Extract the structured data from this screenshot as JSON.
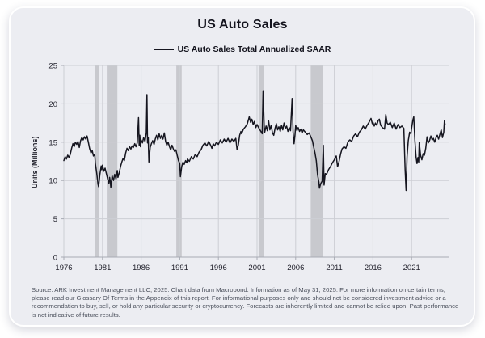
{
  "footer": {
    "source_text": "Source: ARK Investment Management LLC, 2025. Chart data from Macrobond. Information as of May 31, 2025. For more information on certain terms, please read our Glossary Of Terms in the Appendix of this report. For informational purposes only and should not be considered investment advice or a recommendation to buy, sell, or hold any particular security or cryptocurrency. Forecasts are inherently limited and cannot be relied upon. Past performance is not indicative of future results."
  },
  "colors": {
    "card_bg": "#ecedf2",
    "card_border": "#ffffff",
    "line": "#15151f",
    "recession_band": "#c8c9ce",
    "gridline": "#cdced4",
    "axis": "#a8abb4",
    "tick_label": "#23232e",
    "title": "#14141e",
    "source": "#4b505c"
  },
  "chart_data": {
    "type": "line",
    "title": "US Auto Sales",
    "legend_label": "US Auto Sales Total Annualized SAAR",
    "legend_position": "top-center",
    "xlabel": "",
    "ylabel": "Units (Millions)",
    "x_domain": [
      1976,
      2025.9
    ],
    "ylim": [
      0,
      25
    ],
    "y_ticks": [
      0,
      5,
      10,
      15,
      20,
      25
    ],
    "x_ticks": [
      1976,
      1981,
      1986,
      1991,
      1996,
      2001,
      2006,
      2011,
      2016,
      2021
    ],
    "grid": true,
    "recession_bands": [
      [
        1980.05,
        1980.58
      ],
      [
        1981.55,
        1982.92
      ],
      [
        1990.55,
        1991.25
      ],
      [
        2001.2,
        2001.92
      ],
      [
        2007.95,
        2009.5
      ]
    ],
    "series": [
      {
        "name": "US Auto Sales Total Annualized SAAR",
        "color": "#15151f",
        "points": [
          [
            1976.0,
            12.6
          ],
          [
            1976.17,
            13.1
          ],
          [
            1976.33,
            12.8
          ],
          [
            1976.5,
            13.3
          ],
          [
            1976.67,
            13.0
          ],
          [
            1976.83,
            13.4
          ],
          [
            1977.0,
            14.2
          ],
          [
            1977.17,
            14.8
          ],
          [
            1977.33,
            14.4
          ],
          [
            1977.5,
            15.0
          ],
          [
            1977.67,
            14.7
          ],
          [
            1977.83,
            15.1
          ],
          [
            1978.0,
            14.3
          ],
          [
            1978.17,
            15.2
          ],
          [
            1978.33,
            15.6
          ],
          [
            1978.5,
            15.3
          ],
          [
            1978.67,
            15.7
          ],
          [
            1978.83,
            15.4
          ],
          [
            1979.0,
            15.8
          ],
          [
            1979.17,
            15.0
          ],
          [
            1979.33,
            14.2
          ],
          [
            1979.5,
            13.6
          ],
          [
            1979.67,
            13.9
          ],
          [
            1979.83,
            13.2
          ],
          [
            1980.0,
            13.4
          ],
          [
            1980.08,
            12.2
          ],
          [
            1980.25,
            11.0
          ],
          [
            1980.42,
            9.5
          ],
          [
            1980.5,
            9.2
          ],
          [
            1980.67,
            10.8
          ],
          [
            1980.83,
            11.9
          ],
          [
            1980.92,
            11.4
          ],
          [
            1981.0,
            12.0
          ],
          [
            1981.17,
            11.2
          ],
          [
            1981.33,
            11.6
          ],
          [
            1981.5,
            10.9
          ],
          [
            1981.67,
            10.2
          ],
          [
            1981.83,
            9.6
          ],
          [
            1981.92,
            10.4
          ],
          [
            1982.0,
            9.9
          ],
          [
            1982.08,
            9.1
          ],
          [
            1982.25,
            10.6
          ],
          [
            1982.42,
            10.0
          ],
          [
            1982.58,
            10.8
          ],
          [
            1982.75,
            10.2
          ],
          [
            1982.92,
            11.3
          ],
          [
            1983.0,
            10.4
          ],
          [
            1983.17,
            11.0
          ],
          [
            1983.33,
            11.8
          ],
          [
            1983.5,
            12.4
          ],
          [
            1983.67,
            12.9
          ],
          [
            1983.83,
            12.6
          ],
          [
            1984.0,
            13.6
          ],
          [
            1984.17,
            14.2
          ],
          [
            1984.33,
            13.9
          ],
          [
            1984.5,
            14.4
          ],
          [
            1984.67,
            14.1
          ],
          [
            1984.83,
            14.5
          ],
          [
            1985.0,
            14.3
          ],
          [
            1985.17,
            14.8
          ],
          [
            1985.33,
            14.4
          ],
          [
            1985.5,
            14.9
          ],
          [
            1985.67,
            18.2
          ],
          [
            1985.75,
            14.6
          ],
          [
            1985.83,
            15.9
          ],
          [
            1985.92,
            14.4
          ],
          [
            1986.0,
            15.3
          ],
          [
            1986.17,
            14.9
          ],
          [
            1986.33,
            15.6
          ],
          [
            1986.5,
            15.1
          ],
          [
            1986.67,
            16.2
          ],
          [
            1986.75,
            21.2
          ],
          [
            1986.83,
            14.9
          ],
          [
            1986.92,
            15.6
          ],
          [
            1987.0,
            12.4
          ],
          [
            1987.17,
            14.3
          ],
          [
            1987.33,
            14.8
          ],
          [
            1987.5,
            15.2
          ],
          [
            1987.67,
            14.7
          ],
          [
            1987.83,
            15.4
          ],
          [
            1988.0,
            15.9
          ],
          [
            1988.17,
            15.3
          ],
          [
            1988.33,
            16.1
          ],
          [
            1988.5,
            15.5
          ],
          [
            1988.67,
            15.9
          ],
          [
            1988.83,
            15.4
          ],
          [
            1989.0,
            16.2
          ],
          [
            1989.17,
            15.1
          ],
          [
            1989.33,
            14.6
          ],
          [
            1989.5,
            15.0
          ],
          [
            1989.67,
            14.4
          ],
          [
            1989.83,
            14.0
          ],
          [
            1990.0,
            14.6
          ],
          [
            1990.17,
            14.1
          ],
          [
            1990.33,
            13.8
          ],
          [
            1990.5,
            14.0
          ],
          [
            1990.67,
            13.3
          ],
          [
            1990.83,
            12.6
          ],
          [
            1991.0,
            12.2
          ],
          [
            1991.08,
            10.5
          ],
          [
            1991.25,
            11.8
          ],
          [
            1991.42,
            12.4
          ],
          [
            1991.58,
            12.1
          ],
          [
            1991.75,
            12.6
          ],
          [
            1991.92,
            12.3
          ],
          [
            1992.0,
            12.8
          ],
          [
            1992.25,
            12.5
          ],
          [
            1992.5,
            13.1
          ],
          [
            1992.75,
            12.8
          ],
          [
            1993.0,
            13.4
          ],
          [
            1993.25,
            13.1
          ],
          [
            1993.5,
            13.7
          ],
          [
            1993.75,
            14.0
          ],
          [
            1994.0,
            14.6
          ],
          [
            1994.25,
            14.9
          ],
          [
            1994.5,
            14.5
          ],
          [
            1994.75,
            15.1
          ],
          [
            1995.0,
            14.6
          ],
          [
            1995.17,
            14.2
          ],
          [
            1995.33,
            14.8
          ],
          [
            1995.5,
            14.5
          ],
          [
            1995.75,
            15.0
          ],
          [
            1996.0,
            14.7
          ],
          [
            1996.25,
            15.3
          ],
          [
            1996.5,
            14.9
          ],
          [
            1996.75,
            15.4
          ],
          [
            1997.0,
            15.0
          ],
          [
            1997.25,
            15.5
          ],
          [
            1997.5,
            14.9
          ],
          [
            1997.75,
            15.4
          ],
          [
            1998.0,
            15.1
          ],
          [
            1998.25,
            15.5
          ],
          [
            1998.42,
            14.0
          ],
          [
            1998.58,
            14.6
          ],
          [
            1998.75,
            15.9
          ],
          [
            1998.92,
            16.4
          ],
          [
            1999.0,
            16.1
          ],
          [
            1999.25,
            16.7
          ],
          [
            1999.5,
            17.0
          ],
          [
            1999.75,
            17.4
          ],
          [
            2000.0,
            18.3
          ],
          [
            2000.17,
            17.6
          ],
          [
            2000.33,
            18.0
          ],
          [
            2000.5,
            17.3
          ],
          [
            2000.67,
            17.7
          ],
          [
            2000.83,
            16.9
          ],
          [
            2001.0,
            17.3
          ],
          [
            2001.25,
            16.8
          ],
          [
            2001.5,
            16.4
          ],
          [
            2001.67,
            16.1
          ],
          [
            2001.79,
            21.7
          ],
          [
            2001.92,
            17.2
          ],
          [
            2002.0,
            16.3
          ],
          [
            2002.17,
            17.1
          ],
          [
            2002.33,
            16.5
          ],
          [
            2002.5,
            17.8
          ],
          [
            2002.67,
            16.6
          ],
          [
            2002.83,
            17.2
          ],
          [
            2003.0,
            16.2
          ],
          [
            2003.17,
            15.9
          ],
          [
            2003.33,
            16.8
          ],
          [
            2003.5,
            17.4
          ],
          [
            2003.67,
            16.6
          ],
          [
            2003.83,
            17.0
          ],
          [
            2004.0,
            16.4
          ],
          [
            2004.17,
            17.2
          ],
          [
            2004.33,
            16.6
          ],
          [
            2004.5,
            17.5
          ],
          [
            2004.67,
            16.8
          ],
          [
            2004.83,
            17.1
          ],
          [
            2005.0,
            16.4
          ],
          [
            2005.17,
            16.9
          ],
          [
            2005.33,
            16.5
          ],
          [
            2005.54,
            20.7
          ],
          [
            2005.67,
            16.3
          ],
          [
            2005.79,
            14.8
          ],
          [
            2005.92,
            16.0
          ],
          [
            2006.0,
            17.2
          ],
          [
            2006.17,
            16.5
          ],
          [
            2006.33,
            16.9
          ],
          [
            2006.5,
            16.4
          ],
          [
            2006.67,
            16.7
          ],
          [
            2006.83,
            16.2
          ],
          [
            2007.0,
            16.6
          ],
          [
            2007.25,
            16.3
          ],
          [
            2007.5,
            16.0
          ],
          [
            2007.75,
            16.2
          ],
          [
            2008.0,
            15.6
          ],
          [
            2008.17,
            15.2
          ],
          [
            2008.33,
            14.4
          ],
          [
            2008.5,
            13.6
          ],
          [
            2008.67,
            12.6
          ],
          [
            2008.83,
            10.8
          ],
          [
            2009.0,
            9.8
          ],
          [
            2009.08,
            9.0
          ],
          [
            2009.25,
            9.6
          ],
          [
            2009.42,
            9.9
          ],
          [
            2009.58,
            14.6
          ],
          [
            2009.67,
            9.4
          ],
          [
            2009.83,
            10.9
          ],
          [
            2010.0,
            10.8
          ],
          [
            2010.25,
            11.4
          ],
          [
            2010.5,
            11.8
          ],
          [
            2010.75,
            12.3
          ],
          [
            2011.0,
            12.7
          ],
          [
            2011.25,
            13.2
          ],
          [
            2011.42,
            11.8
          ],
          [
            2011.58,
            12.3
          ],
          [
            2011.83,
            13.5
          ],
          [
            2012.0,
            14.1
          ],
          [
            2012.25,
            14.4
          ],
          [
            2012.5,
            14.2
          ],
          [
            2012.75,
            15.0
          ],
          [
            2013.0,
            15.3
          ],
          [
            2013.25,
            15.1
          ],
          [
            2013.5,
            15.8
          ],
          [
            2013.75,
            16.1
          ],
          [
            2014.0,
            15.7
          ],
          [
            2014.25,
            16.3
          ],
          [
            2014.5,
            16.6
          ],
          [
            2014.75,
            17.1
          ],
          [
            2015.0,
            16.7
          ],
          [
            2015.25,
            17.2
          ],
          [
            2015.5,
            17.6
          ],
          [
            2015.75,
            18.1
          ],
          [
            2015.92,
            17.4
          ],
          [
            2016.0,
            17.6
          ],
          [
            2016.17,
            17.1
          ],
          [
            2016.33,
            17.5
          ],
          [
            2016.5,
            17.2
          ],
          [
            2016.67,
            17.8
          ],
          [
            2016.83,
            18.0
          ],
          [
            2017.0,
            17.2
          ],
          [
            2017.25,
            16.9
          ],
          [
            2017.5,
            16.7
          ],
          [
            2017.67,
            18.6
          ],
          [
            2017.83,
            17.5
          ],
          [
            2018.0,
            17.3
          ],
          [
            2018.25,
            17.6
          ],
          [
            2018.5,
            16.9
          ],
          [
            2018.75,
            17.5
          ],
          [
            2019.0,
            16.7
          ],
          [
            2019.25,
            17.3
          ],
          [
            2019.5,
            16.9
          ],
          [
            2019.75,
            17.1
          ],
          [
            2020.0,
            16.8
          ],
          [
            2020.17,
            11.4
          ],
          [
            2020.29,
            8.7
          ],
          [
            2020.42,
            13.1
          ],
          [
            2020.58,
            15.2
          ],
          [
            2020.75,
            16.3
          ],
          [
            2020.92,
            16.1
          ],
          [
            2021.0,
            16.8
          ],
          [
            2021.17,
            17.9
          ],
          [
            2021.29,
            18.3
          ],
          [
            2021.42,
            15.4
          ],
          [
            2021.58,
            13.1
          ],
          [
            2021.71,
            12.2
          ],
          [
            2021.83,
            13.0
          ],
          [
            2021.92,
            12.4
          ],
          [
            2022.0,
            15.0
          ],
          [
            2022.17,
            13.3
          ],
          [
            2022.33,
            12.7
          ],
          [
            2022.5,
            13.5
          ],
          [
            2022.67,
            13.3
          ],
          [
            2022.83,
            14.2
          ],
          [
            2023.0,
            15.7
          ],
          [
            2023.17,
            14.9
          ],
          [
            2023.33,
            15.2
          ],
          [
            2023.5,
            15.8
          ],
          [
            2023.67,
            15.3
          ],
          [
            2023.83,
            15.5
          ],
          [
            2024.0,
            15.0
          ],
          [
            2024.17,
            15.6
          ],
          [
            2024.33,
            15.9
          ],
          [
            2024.5,
            15.4
          ],
          [
            2024.67,
            16.0
          ],
          [
            2024.83,
            16.6
          ],
          [
            2025.0,
            15.6
          ],
          [
            2025.17,
            16.3
          ],
          [
            2025.25,
            17.8
          ],
          [
            2025.33,
            17.3
          ]
        ]
      }
    ]
  }
}
